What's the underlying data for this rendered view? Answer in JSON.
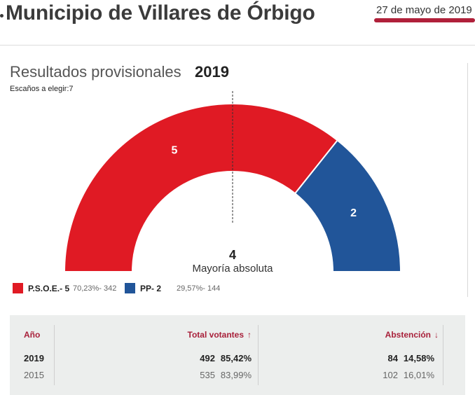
{
  "header": {
    "title": "Municipio de Villares de Órbigo",
    "date": "27 de mayo de 2019"
  },
  "results": {
    "title": "Resultados provisionales",
    "year": "2019",
    "seats_label": "Escaños a elegir:7"
  },
  "chart_data": {
    "type": "hemicycle",
    "total_seats": 7,
    "majority": {
      "value": "4",
      "label": "Mayoría absoluta"
    },
    "parties": [
      {
        "name": "P.S.O.E.",
        "seats": 5,
        "seats_label": "5",
        "legend": "P.S.O.E.- 5",
        "detail": "70,23%- 342",
        "percent": 70.23,
        "votes": 342,
        "color": "#e01a24"
      },
      {
        "name": "PP",
        "seats": 2,
        "seats_label": "2",
        "legend": "PP- 2",
        "detail": "29,57%- 144",
        "percent": 29.57,
        "votes": 144,
        "color": "#215599"
      }
    ]
  },
  "table": {
    "headers": {
      "year": "Año",
      "voters": "Total votantes",
      "voters_arrow": "↑",
      "abstention": "Abstención",
      "abstention_arrow": "↓"
    },
    "rows": [
      {
        "year": "2019",
        "voters": "492",
        "voters_pct": "85,42%",
        "abstention": "84",
        "abstention_pct": "14,58%"
      },
      {
        "year": "2015",
        "voters": "535",
        "voters_pct": "83,99%",
        "abstention": "102",
        "abstention_pct": "16,01%"
      }
    ],
    "accent": "#a8203a"
  }
}
